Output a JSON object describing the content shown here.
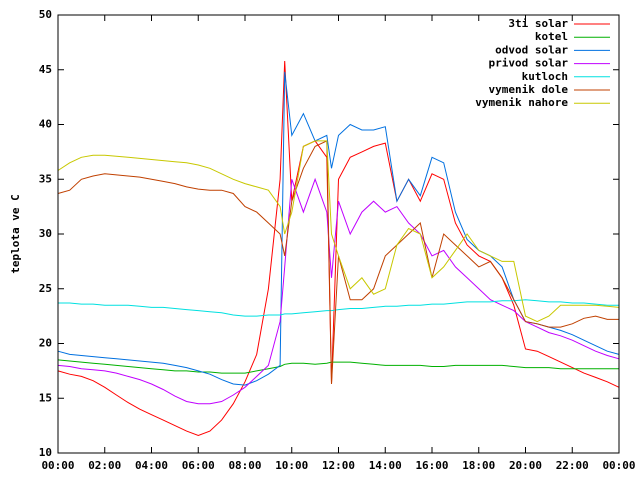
{
  "chart_data": {
    "type": "line",
    "y_label": "teplota ve C",
    "x": [
      0,
      0.5,
      1,
      1.5,
      2,
      2.5,
      3,
      3.5,
      4,
      4.5,
      5,
      5.5,
      6,
      6.5,
      7,
      7.5,
      8,
      8.5,
      9,
      9.5,
      9.7,
      10,
      10.5,
      11,
      11.5,
      11.7,
      12,
      12.5,
      13,
      13.5,
      14,
      14.5,
      15,
      15.5,
      16,
      16.5,
      17,
      17.5,
      18,
      18.5,
      19,
      19.5,
      20,
      20.5,
      21,
      21.5,
      22,
      22.5,
      23,
      23.5,
      24
    ],
    "xlim": [
      0,
      24
    ],
    "xticks": [
      {
        "value": 0,
        "label": "00:00"
      },
      {
        "value": 2,
        "label": "02:00"
      },
      {
        "value": 4,
        "label": "04:00"
      },
      {
        "value": 6,
        "label": "06:00"
      },
      {
        "value": 8,
        "label": "08:00"
      },
      {
        "value": 10,
        "label": "10:00"
      },
      {
        "value": 12,
        "label": "12:00"
      },
      {
        "value": 14,
        "label": "14:00"
      },
      {
        "value": 16,
        "label": "16:00"
      },
      {
        "value": 18,
        "label": "18:00"
      },
      {
        "value": 20,
        "label": "20:00"
      },
      {
        "value": 22,
        "label": "22:00"
      },
      {
        "value": 24,
        "label": "00:00"
      }
    ],
    "ylim": [
      10,
      50
    ],
    "yticks": [
      10,
      15,
      20,
      25,
      30,
      35,
      40,
      45,
      50
    ],
    "legend": "top-right",
    "series": [
      {
        "name": "3ti solar",
        "color": "#ff0000",
        "values": [
          17.5,
          17.2,
          17,
          16.6,
          16,
          15.3,
          14.6,
          14,
          13.5,
          13,
          12.5,
          12,
          11.6,
          12,
          13,
          14.5,
          16.5,
          19,
          25,
          35,
          45.8,
          33,
          38,
          38.5,
          37,
          16.3,
          35,
          37,
          37.5,
          38,
          38.3,
          33,
          35,
          33,
          35.5,
          35,
          31,
          29,
          28,
          27.5,
          26,
          23.5,
          19.5,
          19.3,
          18.8,
          18.3,
          17.8,
          17.3,
          16.9,
          16.5,
          16
        ]
      },
      {
        "name": "kotel",
        "color": "#00b000",
        "values": [
          18.5,
          18.4,
          18.3,
          18.2,
          18.1,
          18,
          17.9,
          17.8,
          17.7,
          17.6,
          17.5,
          17.5,
          17.4,
          17.4,
          17.3,
          17.3,
          17.3,
          17.5,
          17.7,
          17.9,
          18.1,
          18.2,
          18.2,
          18.1,
          18.2,
          18.3,
          18.3,
          18.3,
          18.2,
          18.1,
          18,
          18,
          18,
          18,
          17.9,
          17.9,
          18,
          18,
          18,
          18,
          18,
          17.9,
          17.8,
          17.8,
          17.8,
          17.7,
          17.7,
          17.7,
          17.7,
          17.7,
          17.7
        ]
      },
      {
        "name": "odvod solar",
        "color": "#0070e0",
        "values": [
          19.3,
          19,
          18.9,
          18.8,
          18.7,
          18.6,
          18.5,
          18.4,
          18.3,
          18.2,
          18,
          17.8,
          17.5,
          17.2,
          16.7,
          16.3,
          16.2,
          16.6,
          17.2,
          18,
          44.8,
          39,
          41,
          38.5,
          39,
          36,
          39,
          40,
          39.5,
          39.5,
          39.8,
          33,
          35,
          33.5,
          37,
          36.5,
          32,
          29.5,
          28.5,
          28,
          27,
          24,
          22,
          21.8,
          21.5,
          21.2,
          20.8,
          20.3,
          19.8,
          19.3,
          19
        ]
      },
      {
        "name": "privod solar",
        "color": "#c000ff",
        "values": [
          18,
          17.9,
          17.7,
          17.6,
          17.5,
          17.3,
          17,
          16.7,
          16.3,
          15.8,
          15.2,
          14.7,
          14.5,
          14.5,
          14.7,
          15.3,
          16,
          17,
          18,
          22,
          27,
          35,
          32,
          35,
          32,
          26,
          33,
          30,
          32,
          33,
          32,
          32.5,
          31,
          30,
          28,
          28.5,
          27,
          26,
          25,
          24,
          23.5,
          23,
          22,
          21.5,
          21,
          20.7,
          20.3,
          19.8,
          19.3,
          18.9,
          18.6
        ]
      },
      {
        "name": "kutloch",
        "color": "#00e0e0",
        "values": [
          23.7,
          23.7,
          23.6,
          23.6,
          23.5,
          23.5,
          23.5,
          23.4,
          23.3,
          23.3,
          23.2,
          23.1,
          23,
          22.9,
          22.8,
          22.6,
          22.5,
          22.5,
          22.6,
          22.6,
          22.7,
          22.7,
          22.8,
          22.9,
          23,
          23,
          23.1,
          23.2,
          23.2,
          23.3,
          23.4,
          23.4,
          23.5,
          23.5,
          23.6,
          23.6,
          23.7,
          23.8,
          23.8,
          23.8,
          23.9,
          23.9,
          24,
          23.9,
          23.8,
          23.8,
          23.7,
          23.7,
          23.6,
          23.5,
          23.5
        ]
      },
      {
        "name": "vymenik dole",
        "color": "#c04000",
        "values": [
          33.7,
          34,
          35,
          35.3,
          35.5,
          35.4,
          35.3,
          35.2,
          35,
          34.8,
          34.6,
          34.3,
          34.1,
          34,
          34,
          33.7,
          32.5,
          32,
          31,
          30,
          28,
          33,
          36,
          38,
          38.5,
          16.3,
          28,
          24,
          24,
          25,
          28,
          29,
          30,
          31,
          26,
          30,
          29,
          28,
          27,
          27.5,
          26,
          24,
          22,
          21.8,
          21.5,
          21.5,
          21.8,
          22.3,
          22.5,
          22.2,
          22.2
        ]
      },
      {
        "name": "vymenik nahore",
        "color": "#c8c800",
        "values": [
          35.8,
          36.5,
          37,
          37.2,
          37.2,
          37.1,
          37,
          36.9,
          36.8,
          36.7,
          36.6,
          36.5,
          36.3,
          36,
          35.5,
          35,
          34.6,
          34.3,
          34,
          32.5,
          30,
          32,
          38,
          38.5,
          38.5,
          30,
          28,
          25,
          26,
          24.5,
          25,
          29,
          30.5,
          30,
          26,
          27,
          28.5,
          30,
          28.5,
          28,
          27.5,
          27.5,
          22.5,
          22,
          22.5,
          23.5,
          23.5,
          23.5,
          23.5,
          23.4,
          23.3
        ]
      }
    ]
  }
}
